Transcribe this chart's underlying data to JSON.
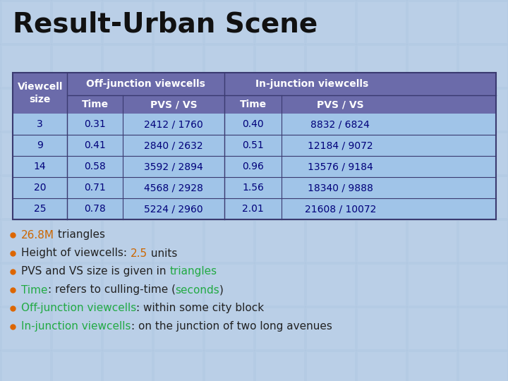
{
  "title": "Result-Urban Scene",
  "bg_color": "#c5d8ee",
  "title_color": "#111111",
  "table": {
    "rows": [
      [
        "3",
        "0.31",
        "2412 / 1760",
        "0.40",
        "8832 / 6824"
      ],
      [
        "9",
        "0.41",
        "2840 / 2632",
        "0.51",
        "12184 / 9072"
      ],
      [
        "14",
        "0.58",
        "3592 / 2894",
        "0.96",
        "13576 / 9184"
      ],
      [
        "20",
        "0.71",
        "4568 / 2928",
        "1.56",
        "18340 / 9888"
      ],
      [
        "25",
        "0.78",
        "5224 / 2960",
        "2.01",
        "21608 / 10072"
      ]
    ],
    "header_bg": "#6b6baa",
    "row_bg": "#a0c4e8",
    "border_color": "#3a3a70",
    "header_text_color": "#ffffff",
    "row_text_color": "#00007a"
  },
  "bullets": [
    [
      {
        "text": "26.8M",
        "color": "#cc6600"
      },
      {
        "text": " triangles",
        "color": "#222222"
      }
    ],
    [
      {
        "text": "Height of viewcells: ",
        "color": "#222222"
      },
      {
        "text": "2.5",
        "color": "#cc6600"
      },
      {
        "text": " units",
        "color": "#222222"
      }
    ],
    [
      {
        "text": "PVS and VS size is given in ",
        "color": "#222222"
      },
      {
        "text": "triangles",
        "color": "#22aa44"
      }
    ],
    [
      {
        "text": "Time",
        "color": "#22aa44"
      },
      {
        "text": ": refers to culling-time (",
        "color": "#222222"
      },
      {
        "text": "seconds",
        "color": "#22aa44"
      },
      {
        "text": ")",
        "color": "#222222"
      }
    ],
    [
      {
        "text": "Off-junction viewcells",
        "color": "#22aa44"
      },
      {
        "text": ": within some city block",
        "color": "#222222"
      }
    ],
    [
      {
        "text": "In-junction viewcells",
        "color": "#22aa44"
      },
      {
        "text": ": on the junction of two long avenues",
        "color": "#222222"
      }
    ]
  ],
  "bullet_color": "#dd6600",
  "tile_color": "#b0c8e2",
  "tile_alpha": 0.5
}
